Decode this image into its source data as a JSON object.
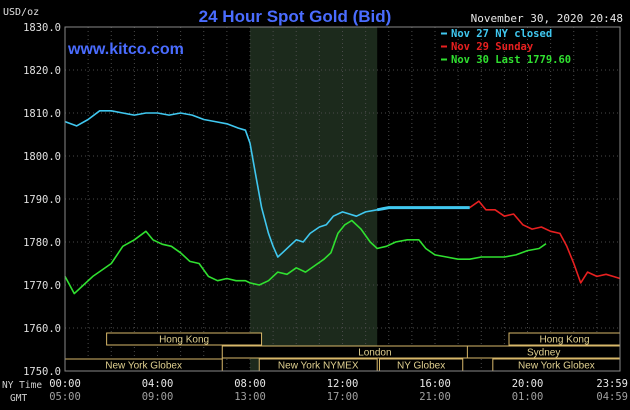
{
  "chart_data": {
    "type": "line",
    "title": "24 Hour Spot Gold (Bid)",
    "watermark": "www.kitco.com",
    "timestamp": "November 30, 2020 20:48",
    "ylabel": "USD/oz",
    "ylim": [
      1750,
      1830
    ],
    "yticks": [
      "1830.0",
      "1820.0",
      "1810.0",
      "1800.0",
      "1790.0",
      "1780.0",
      "1770.0",
      "1760.0",
      "1750.0"
    ],
    "xlim": [
      0,
      24
    ],
    "xticks": [
      {
        "h": 0,
        "ny": "00:00",
        "gmt": "05:00"
      },
      {
        "h": 4,
        "ny": "04:00",
        "gmt": "09:00"
      },
      {
        "h": 8,
        "ny": "08:00",
        "gmt": "13:00"
      },
      {
        "h": 12,
        "ny": "12:00",
        "gmt": "17:00"
      },
      {
        "h": 16,
        "ny": "16:00",
        "gmt": "21:00"
      },
      {
        "h": 20,
        "ny": "20:00",
        "gmt": "01:00"
      },
      {
        "h": 24,
        "ny": "23:59",
        "gmt": "04:59"
      }
    ],
    "x_row_labels": {
      "ny": "NY Time",
      "gmt": "GMT"
    },
    "grid": true,
    "legend_position": "top-right",
    "highlight_range": [
      8,
      13.5
    ],
    "series": [
      {
        "name": "Nov 27 NY closed",
        "color": "#40c8f0",
        "points": [
          [
            0,
            1808
          ],
          [
            0.5,
            1807
          ],
          [
            1,
            1808.5
          ],
          [
            1.5,
            1810.5
          ],
          [
            2,
            1810.5
          ],
          [
            2.5,
            1810
          ],
          [
            3,
            1809.5
          ],
          [
            3.5,
            1810
          ],
          [
            4,
            1810
          ],
          [
            4.5,
            1809.5
          ],
          [
            5,
            1810
          ],
          [
            5.5,
            1809.5
          ],
          [
            6,
            1808.5
          ],
          [
            6.5,
            1808
          ],
          [
            7,
            1807.5
          ],
          [
            7.5,
            1806.5
          ],
          [
            7.8,
            1806
          ],
          [
            8,
            1803
          ],
          [
            8.2,
            1797
          ],
          [
            8.5,
            1788
          ],
          [
            8.8,
            1782
          ],
          [
            9,
            1779
          ],
          [
            9.2,
            1776.5
          ],
          [
            9.4,
            1777.5
          ],
          [
            9.7,
            1779
          ],
          [
            10,
            1780.5
          ],
          [
            10.3,
            1780
          ],
          [
            10.6,
            1782
          ],
          [
            11,
            1783.5
          ],
          [
            11.3,
            1784
          ],
          [
            11.6,
            1786
          ],
          [
            12,
            1787
          ],
          [
            12.3,
            1786.5
          ],
          [
            12.6,
            1786
          ],
          [
            13,
            1787
          ],
          [
            13.5,
            1787.5
          ],
          [
            14,
            1788
          ],
          [
            15,
            1788
          ],
          [
            16,
            1788
          ],
          [
            17,
            1788
          ],
          [
            17.5,
            1788
          ]
        ]
      },
      {
        "name": "Nov 29 Sunday",
        "color": "#e82020",
        "points": [
          [
            17.5,
            1788
          ],
          [
            17.9,
            1789.5
          ],
          [
            18.2,
            1787.5
          ],
          [
            18.6,
            1787.5
          ],
          [
            19,
            1786
          ],
          [
            19.4,
            1786.5
          ],
          [
            19.8,
            1784
          ],
          [
            20.2,
            1783
          ],
          [
            20.6,
            1783.5
          ],
          [
            21,
            1782.5
          ],
          [
            21.4,
            1782
          ],
          [
            21.7,
            1779
          ],
          [
            22,
            1775
          ],
          [
            22.3,
            1770.5
          ],
          [
            22.6,
            1773
          ],
          [
            23,
            1772
          ],
          [
            23.4,
            1772.5
          ],
          [
            23.7,
            1772
          ],
          [
            24,
            1771.5
          ]
        ]
      },
      {
        "name": "Nov 30 Last 1779.60",
        "color": "#30e030",
        "points": [
          [
            0,
            1772
          ],
          [
            0.4,
            1768
          ],
          [
            0.8,
            1770
          ],
          [
            1.2,
            1772
          ],
          [
            1.6,
            1773.5
          ],
          [
            2,
            1775
          ],
          [
            2.5,
            1779
          ],
          [
            3,
            1780.5
          ],
          [
            3.5,
            1782.5
          ],
          [
            3.8,
            1780.5
          ],
          [
            4.2,
            1779.5
          ],
          [
            4.6,
            1779
          ],
          [
            5,
            1777.5
          ],
          [
            5.4,
            1775.5
          ],
          [
            5.8,
            1775
          ],
          [
            6.2,
            1772
          ],
          [
            6.6,
            1771
          ],
          [
            7,
            1771.5
          ],
          [
            7.4,
            1771
          ],
          [
            7.8,
            1771
          ],
          [
            8,
            1770.5
          ],
          [
            8.4,
            1770
          ],
          [
            8.8,
            1771
          ],
          [
            9.2,
            1773
          ],
          [
            9.6,
            1772.5
          ],
          [
            10,
            1774
          ],
          [
            10.4,
            1773
          ],
          [
            10.8,
            1774.5
          ],
          [
            11.2,
            1776
          ],
          [
            11.5,
            1777.5
          ],
          [
            11.8,
            1782
          ],
          [
            12.1,
            1784
          ],
          [
            12.4,
            1785
          ],
          [
            12.8,
            1783
          ],
          [
            13.2,
            1780
          ],
          [
            13.5,
            1778.5
          ],
          [
            13.9,
            1779
          ],
          [
            14.3,
            1780
          ],
          [
            14.8,
            1780.5
          ],
          [
            15.3,
            1780.5
          ],
          [
            15.6,
            1778.5
          ],
          [
            16,
            1777
          ],
          [
            16.5,
            1776.5
          ],
          [
            17,
            1776
          ],
          [
            17.5,
            1776
          ],
          [
            18,
            1776.5
          ],
          [
            18.5,
            1776.5
          ],
          [
            19,
            1776.5
          ],
          [
            19.5,
            1777
          ],
          [
            20,
            1778
          ],
          [
            20.5,
            1778.5
          ],
          [
            20.8,
            1779.6
          ]
        ]
      }
    ],
    "market_sessions": [
      {
        "name": "Hong Kong",
        "row": 1,
        "start": 1.8,
        "end": 8.5
      },
      {
        "name": "London",
        "row": 2,
        "start": 6.8,
        "end": 20
      },
      {
        "name": "New York Globex",
        "row": 3,
        "start": 0,
        "end": 6.8
      },
      {
        "name": "New York NYMEX",
        "row": 3,
        "start": 8.4,
        "end": 13.5
      },
      {
        "name": "NY Globex",
        "row": 3,
        "start": 13.6,
        "end": 17.2
      },
      {
        "name": "Hong Kong",
        "row": 1,
        "start": 19.2,
        "end": 24
      },
      {
        "name": "Sydney",
        "row": 2,
        "start": 17.4,
        "end": 24
      },
      {
        "name": "New York Globex",
        "row": 3,
        "start": 18.5,
        "end": 24
      }
    ]
  }
}
